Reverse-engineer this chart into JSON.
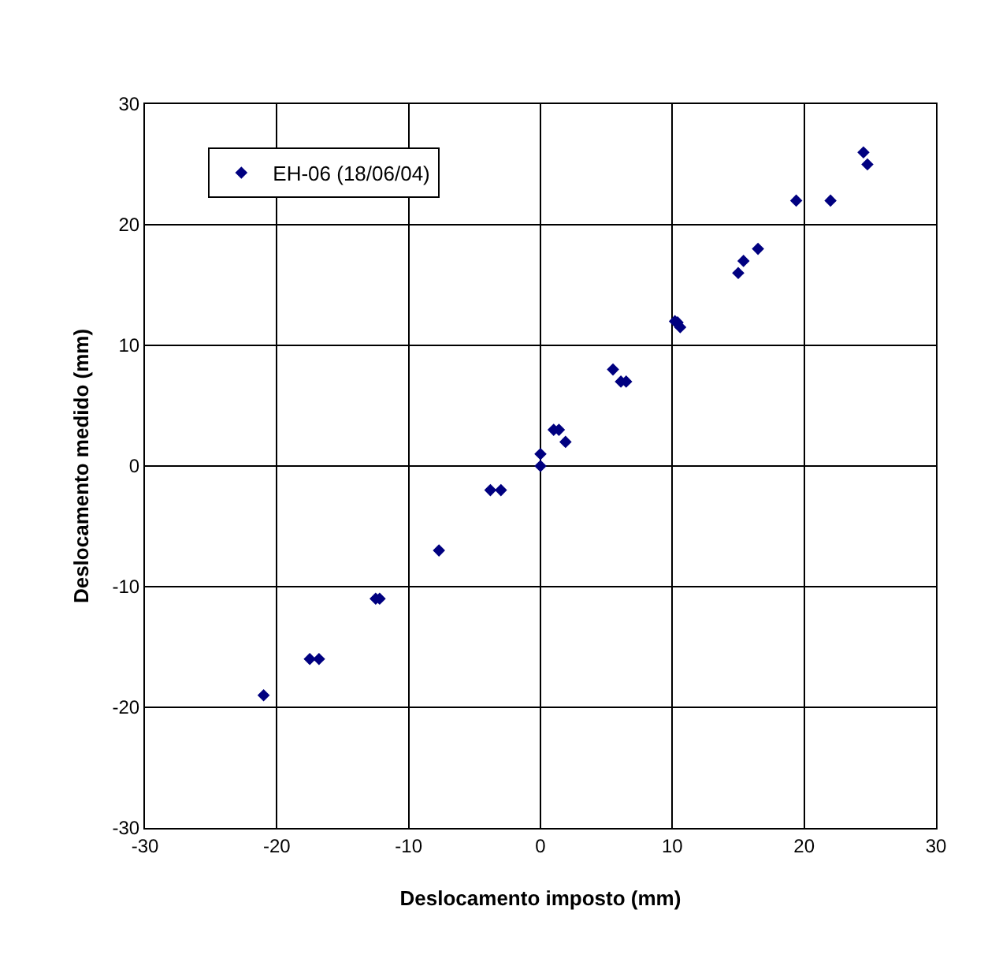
{
  "chart_data": {
    "type": "scatter",
    "xlabel": "Deslocamento imposto (mm)",
    "ylabel": "Deslocamento medido (mm)",
    "series": [
      {
        "name": "EH-06 (18/06/04)",
        "color": "#000080",
        "x": [
          -21.0,
          -17.5,
          -16.8,
          -12.5,
          -12.2,
          -7.7,
          -3.8,
          -3.0,
          0,
          0,
          1.0,
          1.4,
          1.9,
          5.5,
          6.1,
          6.5,
          10.2,
          10.4,
          10.6,
          15.0,
          15.4,
          16.5,
          19.4,
          22.0,
          24.5,
          24.8
        ],
        "values": [
          -19,
          -16,
          -16,
          -11,
          -11,
          -7,
          -2,
          -2,
          1,
          0,
          3,
          3,
          2,
          8,
          7,
          7,
          12,
          11.9,
          11.5,
          16,
          17,
          18,
          22,
          22,
          26,
          25
        ]
      }
    ],
    "xlim": [
      -30,
      30
    ],
    "ylim": [
      -30,
      30
    ],
    "xticks": [
      -30,
      -20,
      -10,
      0,
      10,
      20,
      30
    ],
    "yticks": [
      -30,
      -20,
      -10,
      0,
      10,
      20,
      30
    ],
    "grid": true,
    "legend": "top left",
    "marker": "diamond"
  }
}
